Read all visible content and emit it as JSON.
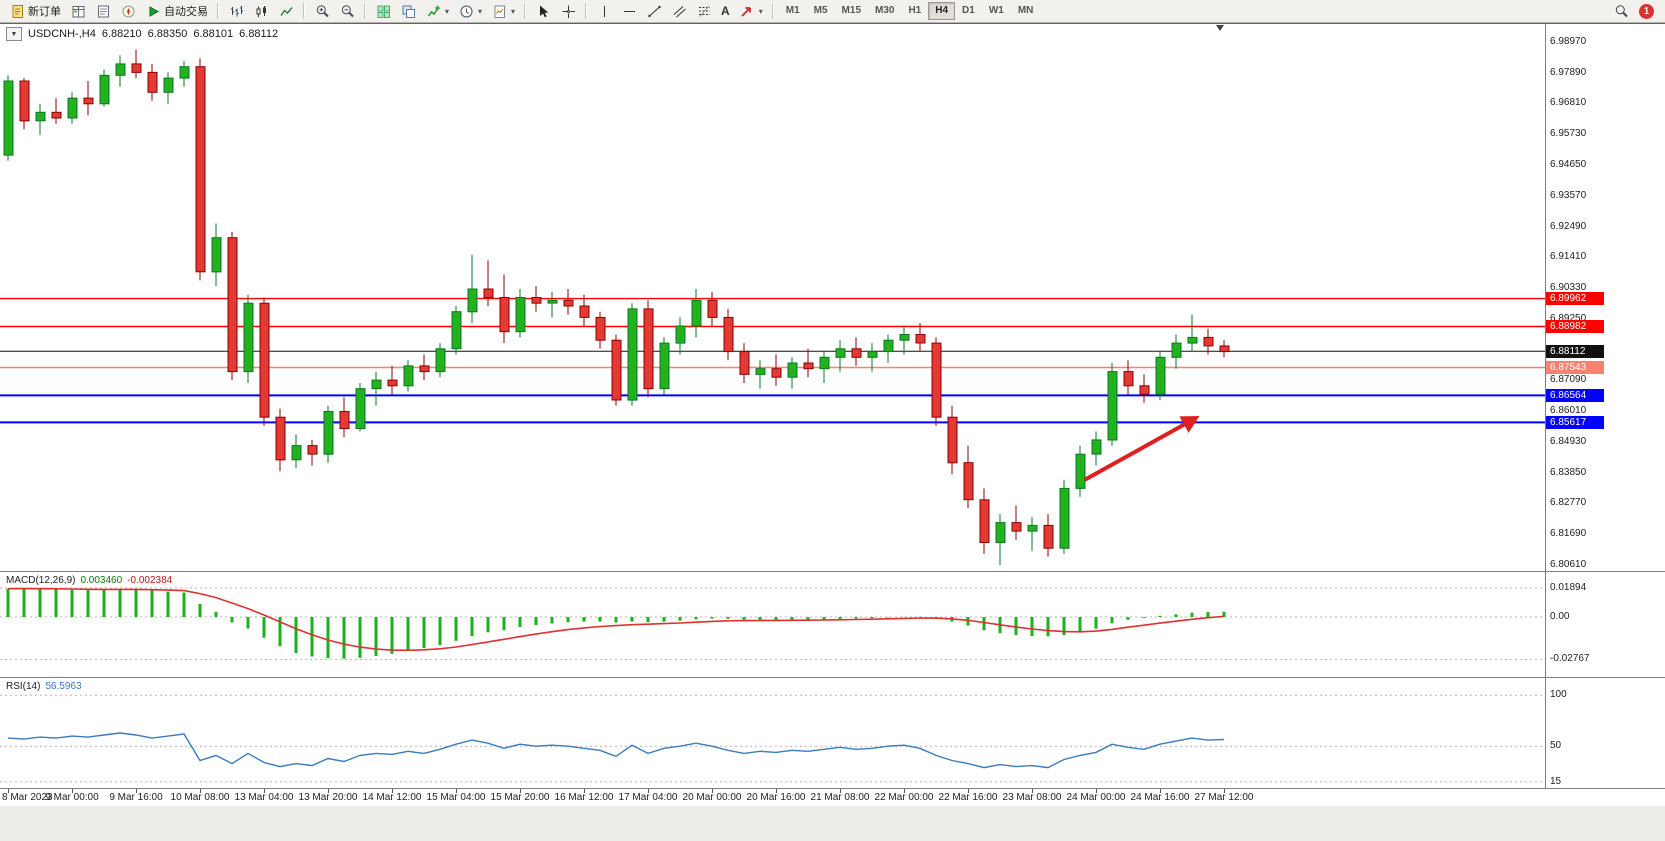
{
  "toolbar": {
    "new_order_label": "新订单",
    "autotrading_label": "自动交易",
    "text_tool_label": "A",
    "timeframes": [
      "M1",
      "M5",
      "M15",
      "M30",
      "H1",
      "H4",
      "D1",
      "W1",
      "MN"
    ],
    "active_timeframe": "H4",
    "notification_count": "1"
  },
  "chart": {
    "title": {
      "symbol": "USDCNH-,H4",
      "open": "6.88210",
      "high": "6.88350",
      "low": "6.88101",
      "close": "6.88112"
    },
    "price_axis": [
      "6.98970",
      "6.97890",
      "6.96810",
      "6.95730",
      "6.94650",
      "6.93570",
      "6.92490",
      "6.91410",
      "6.90330",
      "6.89250",
      "6.88170",
      "6.87090",
      "6.86010",
      "6.84930",
      "6.83850",
      "6.82770",
      "6.81690",
      "6.80610"
    ],
    "time_axis": [
      "8 Mar 2023",
      "9 Mar 00:00",
      "9 Mar 16:00",
      "10 Mar 08:00",
      "13 Mar 04:00",
      "13 Mar 20:00",
      "14 Mar 12:00",
      "15 Mar 04:00",
      "15 Mar 20:00",
      "16 Mar 12:00",
      "17 Mar 04:00",
      "20 Mar 00:00",
      "20 Mar 16:00",
      "21 Mar 08:00",
      "22 Mar 00:00",
      "22 Mar 16:00",
      "23 Mar 08:00",
      "24 Mar 00:00",
      "24 Mar 16:00",
      "27 Mar 12:00"
    ],
    "hlines": [
      {
        "price": 6.89962,
        "label": "6.89962",
        "color": "#ff0000",
        "width": 1.4
      },
      {
        "price": 6.88982,
        "label": "6.88982",
        "color": "#ff0000",
        "width": 1.4
      },
      {
        "price": 6.88112,
        "label": "6.88112",
        "color": "#111111",
        "width": 1
      },
      {
        "price": 6.87543,
        "label": "6.87543",
        "color": "#FA8072",
        "width": 1.4
      },
      {
        "price": 6.86564,
        "label": "6.86564",
        "color": "#0000ff",
        "width": 2
      },
      {
        "price": 6.85617,
        "label": "6.85617",
        "color": "#0000ff",
        "width": 2
      }
    ],
    "arrow": {
      "from_bar": 67.3,
      "from_price": 6.836,
      "to_bar": 73.7,
      "to_price": 6.856,
      "color": "#e02020"
    }
  },
  "macd": {
    "label": "MACD(12,26,9)",
    "value": "0.003460",
    "signal_value": "-0.002384",
    "axis": [
      "0.01894",
      "0.00",
      "-0.02767"
    ]
  },
  "rsi": {
    "label": "RSI(14)",
    "value": "56.5963",
    "axis": [
      "100",
      "50",
      "15"
    ]
  },
  "chart_data": {
    "type": "candlestick",
    "symbol": "USDCNH",
    "timeframe": "H4",
    "ylim": [
      6.804,
      6.996
    ],
    "macd_ylim": [
      -0.0385,
      0.0294
    ],
    "rsi_ylim": [
      9,
      117
    ],
    "candles": [
      [
        6.95,
        6.978,
        6.948,
        6.976
      ],
      [
        6.976,
        6.977,
        6.959,
        6.962
      ],
      [
        6.962,
        6.968,
        6.957,
        6.965
      ],
      [
        6.965,
        6.97,
        6.961,
        6.963
      ],
      [
        6.963,
        6.972,
        6.961,
        6.97
      ],
      [
        6.97,
        6.976,
        6.964,
        6.968
      ],
      [
        6.968,
        6.98,
        6.967,
        6.978
      ],
      [
        6.978,
        6.985,
        6.974,
        6.982
      ],
      [
        6.982,
        6.987,
        6.977,
        6.979
      ],
      [
        6.979,
        6.982,
        6.969,
        6.972
      ],
      [
        6.972,
        6.979,
        6.968,
        6.977
      ],
      [
        6.977,
        6.983,
        6.974,
        6.981
      ],
      [
        6.981,
        6.984,
        6.906,
        6.909
      ],
      [
        6.909,
        6.926,
        6.904,
        6.921
      ],
      [
        6.921,
        6.923,
        6.871,
        6.874
      ],
      [
        6.874,
        6.901,
        6.87,
        6.898
      ],
      [
        6.898,
        6.9,
        6.855,
        6.858
      ],
      [
        6.858,
        6.861,
        6.839,
        6.843
      ],
      [
        6.843,
        6.852,
        6.84,
        6.848
      ],
      [
        6.848,
        6.85,
        6.841,
        6.845
      ],
      [
        6.845,
        6.862,
        6.842,
        6.86
      ],
      [
        6.86,
        6.865,
        6.851,
        6.854
      ],
      [
        6.854,
        6.87,
        6.853,
        6.868
      ],
      [
        6.868,
        6.874,
        6.862,
        6.871
      ],
      [
        6.871,
        6.876,
        6.866,
        6.869
      ],
      [
        6.869,
        6.878,
        6.867,
        6.876
      ],
      [
        6.876,
        6.88,
        6.871,
        6.874
      ],
      [
        6.874,
        6.884,
        6.872,
        6.882
      ],
      [
        6.882,
        6.897,
        6.88,
        6.895
      ],
      [
        6.895,
        6.915,
        6.891,
        6.903
      ],
      [
        6.903,
        6.913,
        6.897,
        6.9
      ],
      [
        6.9,
        6.908,
        6.884,
        6.888
      ],
      [
        6.888,
        6.903,
        6.886,
        6.9
      ],
      [
        6.9,
        6.904,
        6.895,
        6.898
      ],
      [
        6.898,
        6.902,
        6.893,
        6.899
      ],
      [
        6.899,
        6.903,
        6.894,
        6.897
      ],
      [
        6.897,
        6.901,
        6.89,
        6.893
      ],
      [
        6.893,
        6.895,
        6.882,
        6.885
      ],
      [
        6.885,
        6.887,
        6.862,
        6.864
      ],
      [
        6.864,
        6.898,
        6.862,
        6.896
      ],
      [
        6.896,
        6.899,
        6.865,
        6.868
      ],
      [
        6.868,
        6.886,
        6.866,
        6.884
      ],
      [
        6.884,
        6.893,
        6.88,
        6.89
      ],
      [
        6.89,
        6.903,
        6.886,
        6.899
      ],
      [
        6.899,
        6.902,
        6.89,
        6.893
      ],
      [
        6.893,
        6.896,
        6.878,
        6.881
      ],
      [
        6.881,
        6.884,
        6.87,
        6.873
      ],
      [
        6.873,
        6.878,
        6.868,
        6.875
      ],
      [
        6.875,
        6.88,
        6.869,
        6.872
      ],
      [
        6.872,
        6.879,
        6.868,
        6.877
      ],
      [
        6.877,
        6.882,
        6.872,
        6.875
      ],
      [
        6.875,
        6.881,
        6.87,
        6.879
      ],
      [
        6.879,
        6.885,
        6.874,
        6.882
      ],
      [
        6.882,
        6.886,
        6.876,
        6.879
      ],
      [
        6.879,
        6.884,
        6.874,
        6.881
      ],
      [
        6.881,
        6.887,
        6.877,
        6.885
      ],
      [
        6.885,
        6.89,
        6.88,
        6.887
      ],
      [
        6.887,
        6.891,
        6.881,
        6.884
      ],
      [
        6.884,
        6.886,
        6.855,
        6.858
      ],
      [
        6.858,
        6.862,
        6.838,
        6.842
      ],
      [
        6.842,
        6.848,
        6.826,
        6.829
      ],
      [
        6.829,
        6.833,
        6.81,
        6.814
      ],
      [
        6.814,
        6.824,
        6.806,
        6.821
      ],
      [
        6.821,
        6.827,
        6.815,
        6.818
      ],
      [
        6.818,
        6.823,
        6.811,
        6.82
      ],
      [
        6.82,
        6.824,
        6.809,
        6.812
      ],
      [
        6.812,
        6.836,
        6.81,
        6.833
      ],
      [
        6.833,
        6.848,
        6.83,
        6.845
      ],
      [
        6.845,
        6.853,
        6.841,
        6.85
      ],
      [
        6.85,
        6.877,
        6.848,
        6.874
      ],
      [
        6.874,
        6.878,
        6.866,
        6.869
      ],
      [
        6.869,
        6.873,
        6.863,
        6.866
      ],
      [
        6.866,
        6.881,
        6.864,
        6.879
      ],
      [
        6.879,
        6.887,
        6.875,
        6.884
      ],
      [
        6.884,
        6.894,
        6.881,
        6.886
      ],
      [
        6.886,
        6.889,
        6.88,
        6.883
      ],
      [
        6.883,
        6.885,
        6.879,
        6.881
      ]
    ],
    "macd": [
      0.0185,
      0.0187,
      0.0184,
      0.0181,
      0.0178,
      0.0176,
      0.0178,
      0.0181,
      0.0179,
      0.0173,
      0.0166,
      0.016,
      0.0085,
      0.0035,
      -0.0035,
      -0.0075,
      -0.0135,
      -0.019,
      -0.0235,
      -0.0258,
      -0.0269,
      -0.0272,
      -0.0266,
      -0.0255,
      -0.024,
      -0.0222,
      -0.0203,
      -0.0183,
      -0.0155,
      -0.0125,
      -0.01,
      -0.0085,
      -0.0065,
      -0.0052,
      -0.0042,
      -0.0034,
      -0.003,
      -0.003,
      -0.0036,
      -0.003,
      -0.0034,
      -0.003,
      -0.0024,
      -0.0015,
      -0.001,
      -0.0012,
      -0.0018,
      -0.002,
      -0.0021,
      -0.0019,
      -0.0018,
      -0.0016,
      -0.0012,
      -0.001,
      -0.0007,
      -0.0003,
      0.0001,
      0.0002,
      -0.0008,
      -0.003,
      -0.0055,
      -0.0085,
      -0.0105,
      -0.0118,
      -0.0124,
      -0.0126,
      -0.0118,
      -0.01,
      -0.0076,
      -0.004,
      -0.0018,
      -0.0006,
      0.0008,
      0.0018,
      0.0028,
      0.0034,
      0.0035
    ],
    "rsi": [
      58,
      57,
      59,
      58,
      60,
      59,
      61,
      63,
      61,
      58,
      60,
      62,
      36,
      41,
      33,
      43,
      34,
      30,
      33,
      31,
      38,
      35,
      41,
      43,
      42,
      45,
      43,
      47,
      52,
      56,
      53,
      48,
      52,
      50,
      51,
      50,
      48,
      46,
      40,
      51,
      43,
      48,
      50,
      53,
      50,
      46,
      43,
      45,
      44,
      46,
      45,
      47,
      49,
      47,
      48,
      50,
      51,
      48,
      41,
      36,
      33,
      29,
      32,
      30,
      31,
      29,
      37,
      41,
      44,
      52,
      49,
      47,
      52,
      55,
      58,
      56,
      56.6
    ]
  }
}
